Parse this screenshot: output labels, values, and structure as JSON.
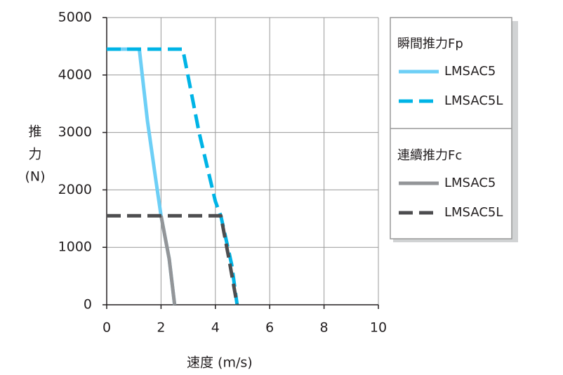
{
  "chart_data": {
    "type": "line",
    "ylabel_lines": [
      "推",
      "力",
      "(N)"
    ],
    "xlabel": "速度 (m/s)",
    "xlim": [
      0,
      10
    ],
    "xticks": [
      0,
      2,
      4,
      6,
      8,
      10
    ],
    "ylim": [
      0,
      5000
    ],
    "yticks": [
      0,
      1000,
      2000,
      3000,
      4000,
      5000
    ],
    "grid": true,
    "legend_groups": [
      {
        "title": "瞬間推力Fp"
      },
      {
        "title": "連續推力Fc"
      }
    ],
    "series": [
      {
        "name": "LMSAC5",
        "color": "#6dcff6",
        "dash": false,
        "x": [
          0,
          1.2,
          1.5,
          1.8,
          2.0,
          2.3,
          2.5
        ],
        "values": [
          4450,
          4450,
          3200,
          2200,
          1550,
          800,
          0
        ]
      },
      {
        "name": "LMSAC5L",
        "color": "#00b4e6",
        "dash": true,
        "x": [
          0,
          2.8,
          3.4,
          4.0,
          4.2,
          4.6,
          4.8
        ],
        "values": [
          4450,
          4450,
          3000,
          1800,
          1550,
          700,
          0
        ]
      },
      {
        "name": "LMSAC5",
        "color": "#939598",
        "dash": false,
        "x": [
          2.0,
          2.3,
          2.5
        ],
        "values": [
          1550,
          800,
          0
        ]
      },
      {
        "name": "LMSAC5L",
        "color": "#4d4d4f",
        "dash": true,
        "x": [
          0,
          4.2,
          4.5,
          4.8
        ],
        "values": [
          1550,
          1550,
          800,
          0
        ]
      }
    ]
  }
}
